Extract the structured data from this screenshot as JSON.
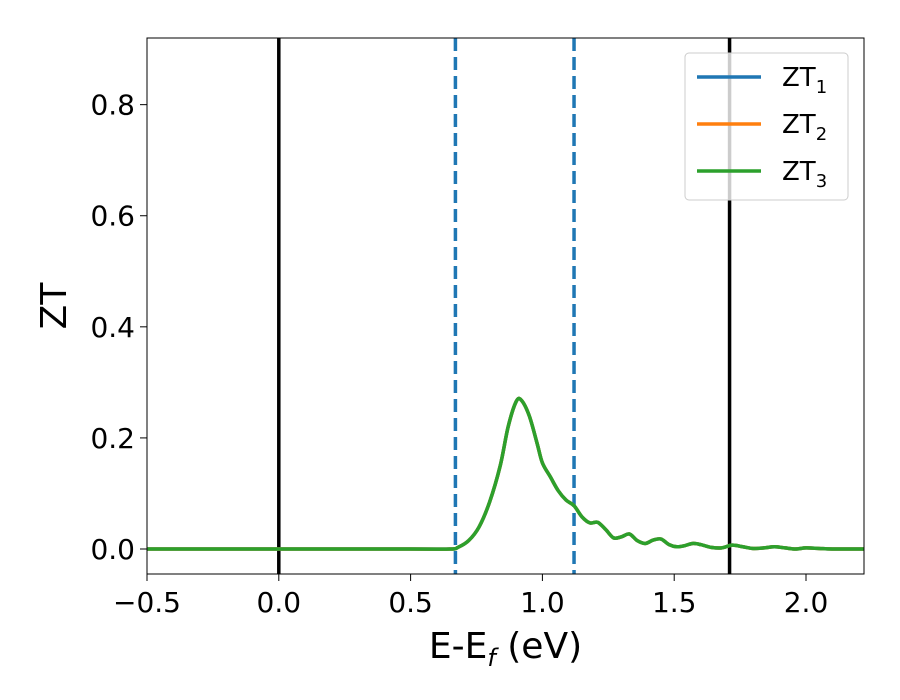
{
  "chart_data": {
    "type": "line",
    "title": "",
    "xlabel": "E-E_f (eV)",
    "xlabel_parts": {
      "main": "E-E",
      "sub": "f",
      "rest": " (eV)"
    },
    "ylabel": "ZT",
    "xlim": [
      -0.5,
      2.22
    ],
    "ylim": [
      -0.045,
      0.92
    ],
    "xticks": [
      -0.5,
      0.0,
      0.5,
      1.0,
      1.5,
      2.0
    ],
    "xtick_labels": [
      "−0.5",
      "0.0",
      "0.5",
      "1.0",
      "1.5",
      "2.0"
    ],
    "yticks": [
      0.0,
      0.2,
      0.4,
      0.6,
      0.8
    ],
    "ytick_labels": [
      "0.0",
      "0.2",
      "0.4",
      "0.6",
      "0.8"
    ],
    "grid": false,
    "legend_position": "top-right",
    "vlines": [
      {
        "x": 0.0,
        "style": "solid",
        "color": "#000000"
      },
      {
        "x": 1.71,
        "style": "solid",
        "color": "#000000"
      },
      {
        "x": 0.67,
        "style": "dashed",
        "color": "#1f77b4"
      },
      {
        "x": 1.12,
        "style": "dashed",
        "color": "#1f77b4"
      }
    ],
    "series": [
      {
        "name": "ZT_1",
        "name_main": "ZT",
        "name_sub": "1",
        "color": "#1f77b4",
        "x": [
          -0.5,
          0.0,
          0.5,
          0.65,
          0.68,
          0.72,
          0.76,
          0.8,
          0.84,
          0.87,
          0.9,
          0.92,
          0.95,
          0.98,
          1.0,
          1.03,
          1.06,
          1.09,
          1.12,
          1.15,
          1.18,
          1.21,
          1.24,
          1.27,
          1.3,
          1.33,
          1.36,
          1.39,
          1.42,
          1.45,
          1.48,
          1.51,
          1.54,
          1.57,
          1.6,
          1.64,
          1.68,
          1.72,
          1.76,
          1.8,
          1.84,
          1.88,
          1.92,
          1.96,
          2.0,
          2.05,
          2.1,
          2.22
        ],
        "values": [
          0,
          0,
          0,
          0,
          0.003,
          0.015,
          0.04,
          0.085,
          0.15,
          0.22,
          0.265,
          0.268,
          0.24,
          0.19,
          0.155,
          0.13,
          0.105,
          0.088,
          0.078,
          0.058,
          0.047,
          0.048,
          0.035,
          0.02,
          0.022,
          0.027,
          0.015,
          0.01,
          0.016,
          0.018,
          0.008,
          0.004,
          0.006,
          0.01,
          0.008,
          0.003,
          0.002,
          0.007,
          0.004,
          0.001,
          0.002,
          0.004,
          0.002,
          0.0,
          0.002,
          0.001,
          0.0,
          0.0
        ]
      },
      {
        "name": "ZT_2",
        "name_main": "ZT",
        "name_sub": "2",
        "color": "#ff7f0e",
        "x": [
          -0.5,
          0.0,
          0.5,
          0.65,
          0.68,
          0.72,
          0.76,
          0.8,
          0.84,
          0.87,
          0.9,
          0.92,
          0.95,
          0.98,
          1.0,
          1.03,
          1.06,
          1.09,
          1.12,
          1.15,
          1.18,
          1.21,
          1.24,
          1.27,
          1.3,
          1.33,
          1.36,
          1.39,
          1.42,
          1.45,
          1.48,
          1.51,
          1.54,
          1.57,
          1.6,
          1.64,
          1.68,
          1.72,
          1.76,
          1.8,
          1.84,
          1.88,
          1.92,
          1.96,
          2.0,
          2.05,
          2.1,
          2.22
        ],
        "values": [
          0,
          0,
          0,
          0,
          0.003,
          0.015,
          0.04,
          0.085,
          0.15,
          0.22,
          0.265,
          0.268,
          0.24,
          0.19,
          0.155,
          0.13,
          0.105,
          0.088,
          0.078,
          0.058,
          0.047,
          0.048,
          0.035,
          0.02,
          0.022,
          0.027,
          0.015,
          0.01,
          0.016,
          0.018,
          0.008,
          0.004,
          0.006,
          0.01,
          0.008,
          0.003,
          0.002,
          0.007,
          0.004,
          0.001,
          0.002,
          0.004,
          0.002,
          0.0,
          0.002,
          0.001,
          0.0,
          0.0
        ]
      },
      {
        "name": "ZT_3",
        "name_main": "ZT",
        "name_sub": "3",
        "color": "#2ca02c",
        "x": [
          -0.5,
          0.0,
          0.5,
          0.65,
          0.68,
          0.72,
          0.76,
          0.8,
          0.84,
          0.87,
          0.9,
          0.92,
          0.95,
          0.98,
          1.0,
          1.03,
          1.06,
          1.09,
          1.12,
          1.15,
          1.18,
          1.21,
          1.24,
          1.27,
          1.3,
          1.33,
          1.36,
          1.39,
          1.42,
          1.45,
          1.48,
          1.51,
          1.54,
          1.57,
          1.6,
          1.64,
          1.68,
          1.72,
          1.76,
          1.8,
          1.84,
          1.88,
          1.92,
          1.96,
          2.0,
          2.05,
          2.1,
          2.22
        ],
        "values": [
          0,
          0,
          0,
          0,
          0.003,
          0.015,
          0.04,
          0.085,
          0.15,
          0.22,
          0.265,
          0.268,
          0.24,
          0.19,
          0.155,
          0.13,
          0.105,
          0.088,
          0.078,
          0.058,
          0.047,
          0.048,
          0.035,
          0.02,
          0.022,
          0.027,
          0.015,
          0.01,
          0.016,
          0.018,
          0.008,
          0.004,
          0.006,
          0.01,
          0.008,
          0.003,
          0.002,
          0.007,
          0.004,
          0.001,
          0.002,
          0.004,
          0.002,
          0.0,
          0.002,
          0.001,
          0.0,
          0.0
        ]
      }
    ]
  }
}
